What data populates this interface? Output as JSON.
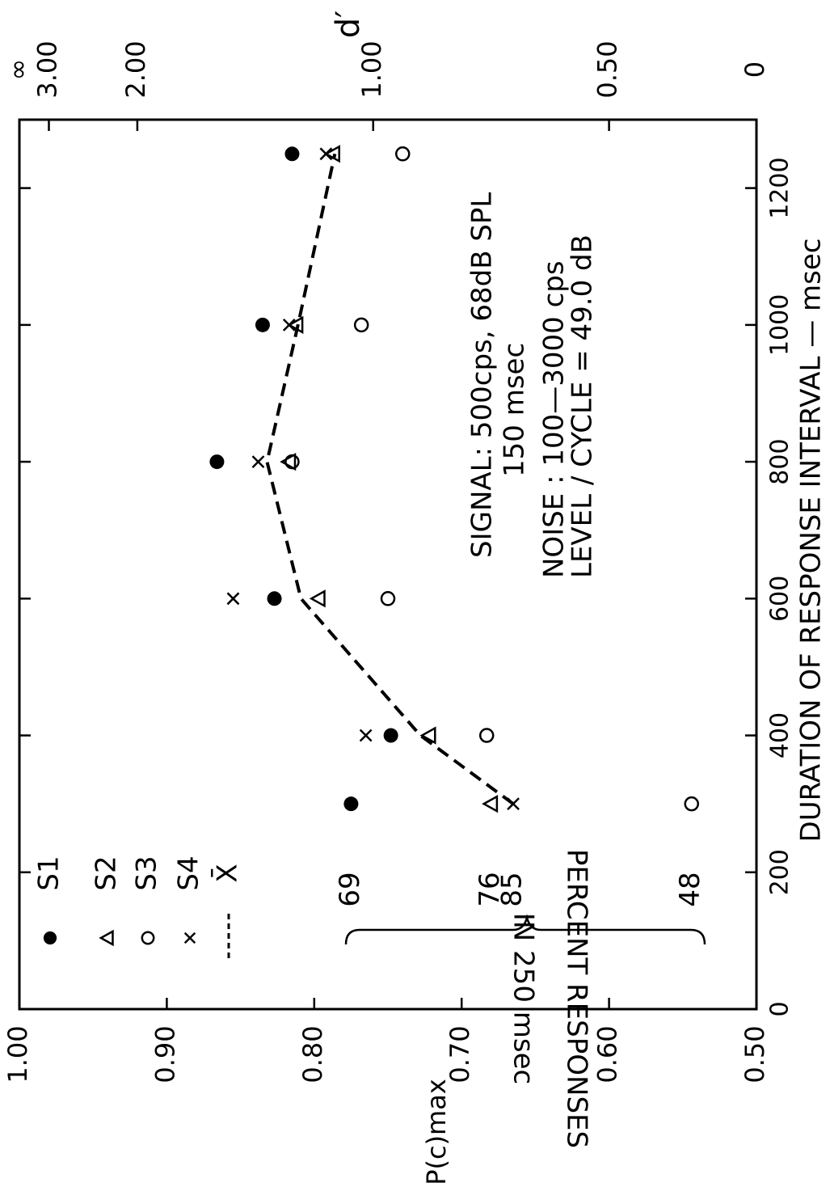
{
  "chart_data": {
    "type": "scatter",
    "orientation": "rotated-90-clockwise",
    "xlabel": "DURATION OF RESPONSE INTERVAL — msec",
    "ylabel": "P(c)max",
    "y2label": "d′",
    "xlim": [
      0,
      1300
    ],
    "ylim": [
      0.5,
      1.0
    ],
    "x_ticks": [
      "0",
      "200",
      "400",
      "600",
      "800",
      "1000",
      "1200"
    ],
    "x_tick_values": [
      0,
      200,
      400,
      600,
      800,
      1000,
      1200
    ],
    "y_ticks": [
      "0.50",
      "0.60",
      "0.70",
      "0.80",
      "0.90",
      "1.00"
    ],
    "y_tick_values": [
      0.5,
      0.6,
      0.7,
      0.8,
      0.9,
      1.0
    ],
    "y2_ticks": [
      "0",
      "0.50",
      "1.00",
      "2.00",
      "3.00",
      "∞"
    ],
    "y2_tick_pc": [
      0.5,
      0.6,
      0.76,
      0.92,
      0.98,
      1.0
    ],
    "grid": false,
    "legend_placement": "top-left",
    "series": [
      {
        "name": "S1",
        "marker": "filled-circle",
        "x": [
          300,
          400,
          600,
          800,
          1000,
          1250
        ],
        "y": [
          0.775,
          0.748,
          0.827,
          0.866,
          0.835,
          0.815
        ]
      },
      {
        "name": "S2",
        "marker": "triangle",
        "x": [
          300,
          400,
          600,
          800,
          1000,
          1250
        ],
        "y": [
          0.68,
          0.722,
          0.797,
          0.817,
          0.812,
          0.787
        ]
      },
      {
        "name": "S3",
        "marker": "open-circle",
        "x": [
          300,
          400,
          600,
          800,
          1000,
          1250
        ],
        "y": [
          0.544,
          0.683,
          0.75,
          0.815,
          0.768,
          0.74
        ]
      },
      {
        "name": "S4",
        "marker": "x",
        "x": [
          300,
          400,
          600,
          800,
          1000,
          1250
        ],
        "y": [
          0.665,
          0.765,
          0.855,
          0.838,
          0.817,
          0.792
        ]
      },
      {
        "name": "X̄",
        "marker": "dashed-line",
        "x": [
          300,
          400,
          600,
          800,
          1000,
          1250
        ],
        "y": [
          0.665,
          0.728,
          0.809,
          0.832,
          0.811,
          0.786
        ]
      }
    ],
    "annotations": {
      "signal_line1": "SIGNAL: 500cps, 68dB SPL",
      "signal_line2": "150 msec",
      "noise_line1": "NOISE : 100—3000 cps",
      "noise_line2": "LEVEL / CYCLE = 49.0 dB",
      "percent_title_line1": "PERCENT RESPONSES",
      "percent_title_line2": "IN 250 msec",
      "percent_values": [
        {
          "label": "69",
          "pc": 0.775
        },
        {
          "label": "76",
          "pc": 0.68
        },
        {
          "label": "85",
          "pc": 0.665
        },
        {
          "label": "48",
          "pc": 0.544
        }
      ]
    }
  }
}
